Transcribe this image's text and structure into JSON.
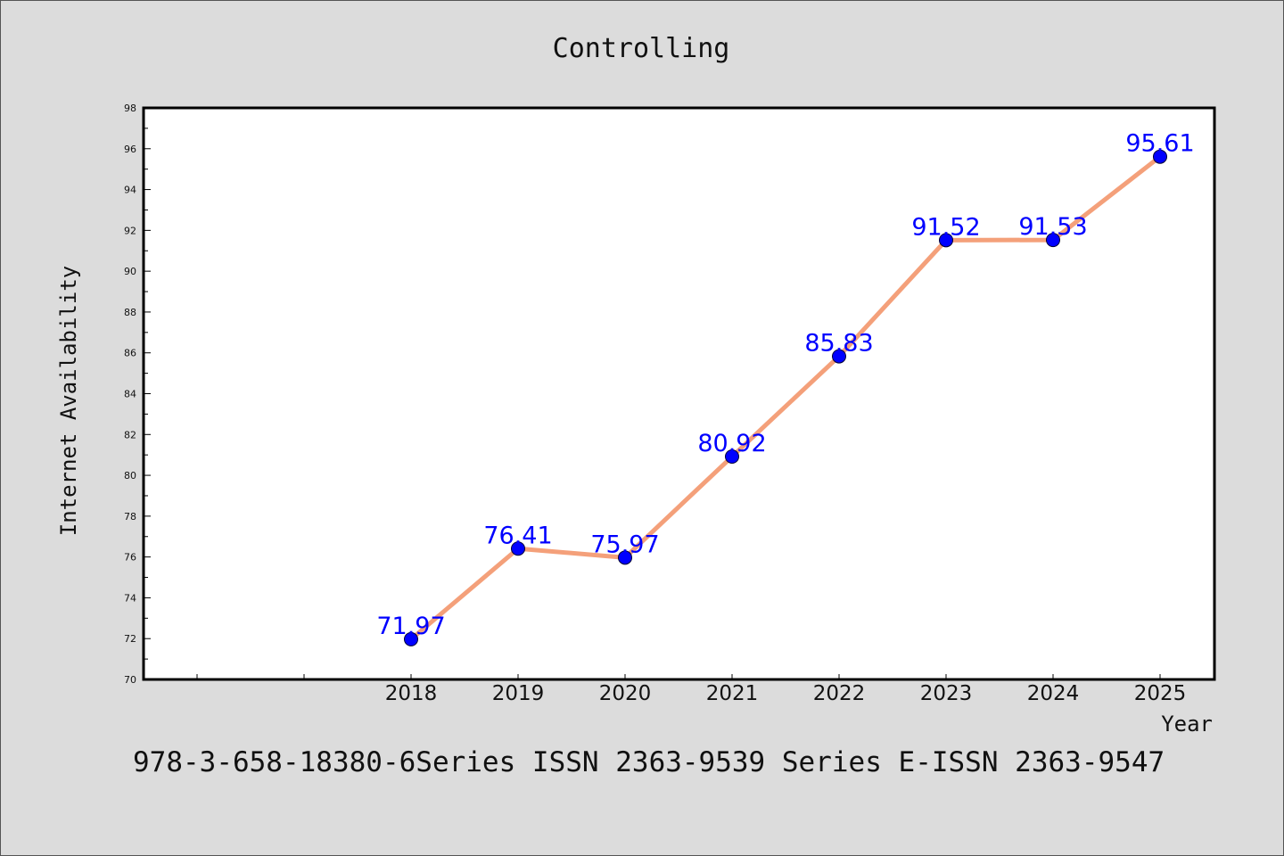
{
  "chart_data": {
    "type": "line",
    "title": "Controlling",
    "xlabel": "Year",
    "ylabel": "Internet Availability",
    "x": [
      "2018",
      "2019",
      "2020",
      "2021",
      "2022",
      "2023",
      "2024",
      "2025"
    ],
    "series": [
      {
        "values": [
          71.97,
          76.41,
          75.97,
          80.92,
          85.83,
          91.52,
          91.53,
          95.61
        ],
        "line_color": "#f4a07a",
        "marker_color": "#0000ff"
      }
    ],
    "data_labels": [
      "71.97",
      "76.41",
      "75.97",
      "80.92",
      "85.83",
      "91.52",
      "91.53",
      "95.61"
    ],
    "ylim": [
      70,
      98
    ],
    "yticks": [
      "70",
      "72",
      "74",
      "76",
      "78",
      "80",
      "82",
      "84",
      "86",
      "88",
      "90",
      "92",
      "94",
      "96",
      "98"
    ],
    "grid": false,
    "legend": "none",
    "background_color": "#dcdcdc",
    "plot_background_color": "#ffffff"
  },
  "footer": {
    "text": "978-3-658-18380-6Series ISSN 2363-9539 Series E-ISSN 2363-9547"
  }
}
